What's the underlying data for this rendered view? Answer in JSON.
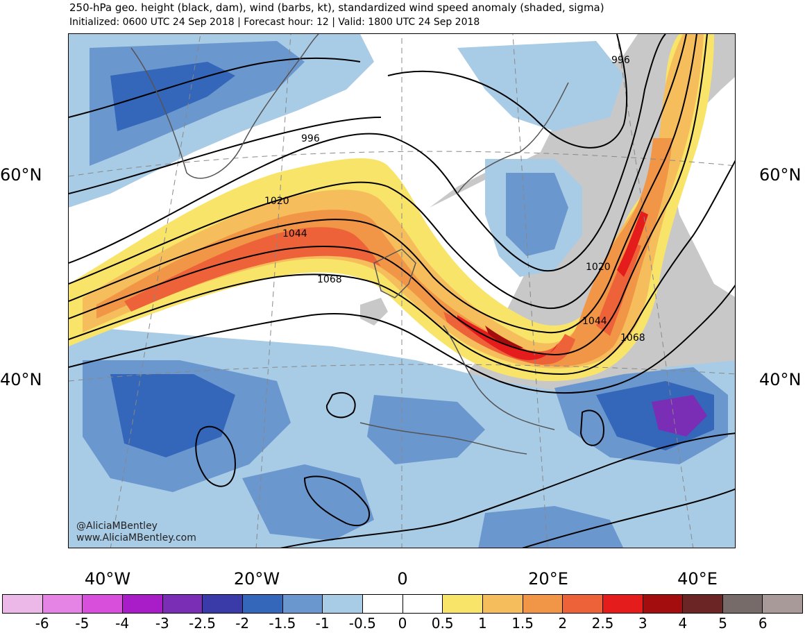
{
  "title": "250-hPa geo. height (black, dam), wind (barbs, kt), standardized wind speed anomaly (shaded, sigma)",
  "subtitle": "Initialized: 0600 UTC 24 Sep 2018 | Forecast hour: 12 | Valid: 1800 UTC 24 Sep 2018",
  "lat_labels": {
    "left_60": "60°N",
    "right_60": "60°N",
    "left_40": "40°N",
    "right_40": "40°N"
  },
  "lon_labels": [
    "40°W",
    "20°W",
    "0",
    "20°E",
    "40°E"
  ],
  "contour_labels": [
    "996",
    "996",
    "1020",
    "1044",
    "1068",
    "1020",
    "1044",
    "1068"
  ],
  "credit": {
    "handle": "@AliciaMBentley",
    "website": "www.AliciaMBentley.com"
  },
  "colorbar": {
    "colors": [
      "#ebb8e8",
      "#e584e4",
      "#d84fdb",
      "#a91dc9",
      "#7a2eb5",
      "#3a3aa8",
      "#3466ba",
      "#6b97cf",
      "#a8cbe6",
      "#ffffff",
      "#ffffff",
      "#f9e46a",
      "#f5bd5b",
      "#f19646",
      "#ee623a",
      "#e41c1c",
      "#a40d0d",
      "#6b2525",
      "#766b68",
      "#a89a99"
    ],
    "labels": [
      "-6",
      "-5",
      "-4",
      "-3",
      "-2.5",
      "-2",
      "-1.5",
      "-1",
      "-0.5",
      "0",
      "0.5",
      "1",
      "1.5",
      "2",
      "2.5",
      "3",
      "4",
      "5",
      "6"
    ]
  },
  "map_colors": {
    "land": "#c8c8c8",
    "ocean": "#ffffff",
    "neg_light": "#a8cbe6",
    "neg_mid": "#6b97cf",
    "neg_dark": "#3466ba",
    "neg_deep": "#7a2eb5",
    "pos_1": "#f9e46a",
    "pos_2": "#f5bd5b",
    "pos_3": "#f19646",
    "pos_4": "#ee623a",
    "pos_5": "#e41c1c",
    "pos_6": "#a40d0d"
  }
}
